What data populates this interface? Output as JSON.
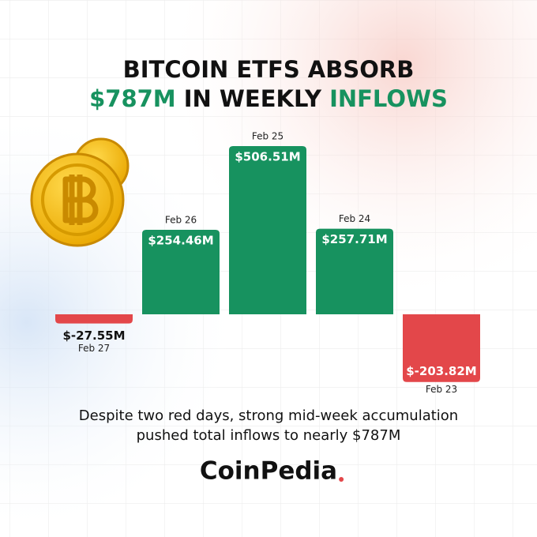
{
  "chart_data": {
    "type": "bar",
    "title_lines": [
      [
        {
          "text": "BITCOIN ETFS ABSORB",
          "color": "#111111"
        }
      ],
      [
        {
          "text": "$787M",
          "color": "#17925f"
        },
        {
          "text": " IN WEEKLY ",
          "color": "#111111"
        },
        {
          "text": "INFLOWS",
          "color": "#17925f"
        }
      ]
    ],
    "categories": [
      "Feb 27",
      "Feb 26",
      "Feb 25",
      "Feb 24",
      "Feb 23"
    ],
    "values": [
      -27.55,
      254.46,
      506.51,
      257.71,
      -203.82
    ],
    "value_labels": [
      "$-27.55M",
      "$254.46M",
      "$506.51M",
      "$257.71M",
      "$-203.82M"
    ],
    "color_positive": "#17925f",
    "color_negative": "#e3474a",
    "caption": [
      "Despite two red days, strong mid-week accumulation",
      "pushed total inflows to nearly $787M"
    ],
    "brand": "CoinPedia"
  }
}
